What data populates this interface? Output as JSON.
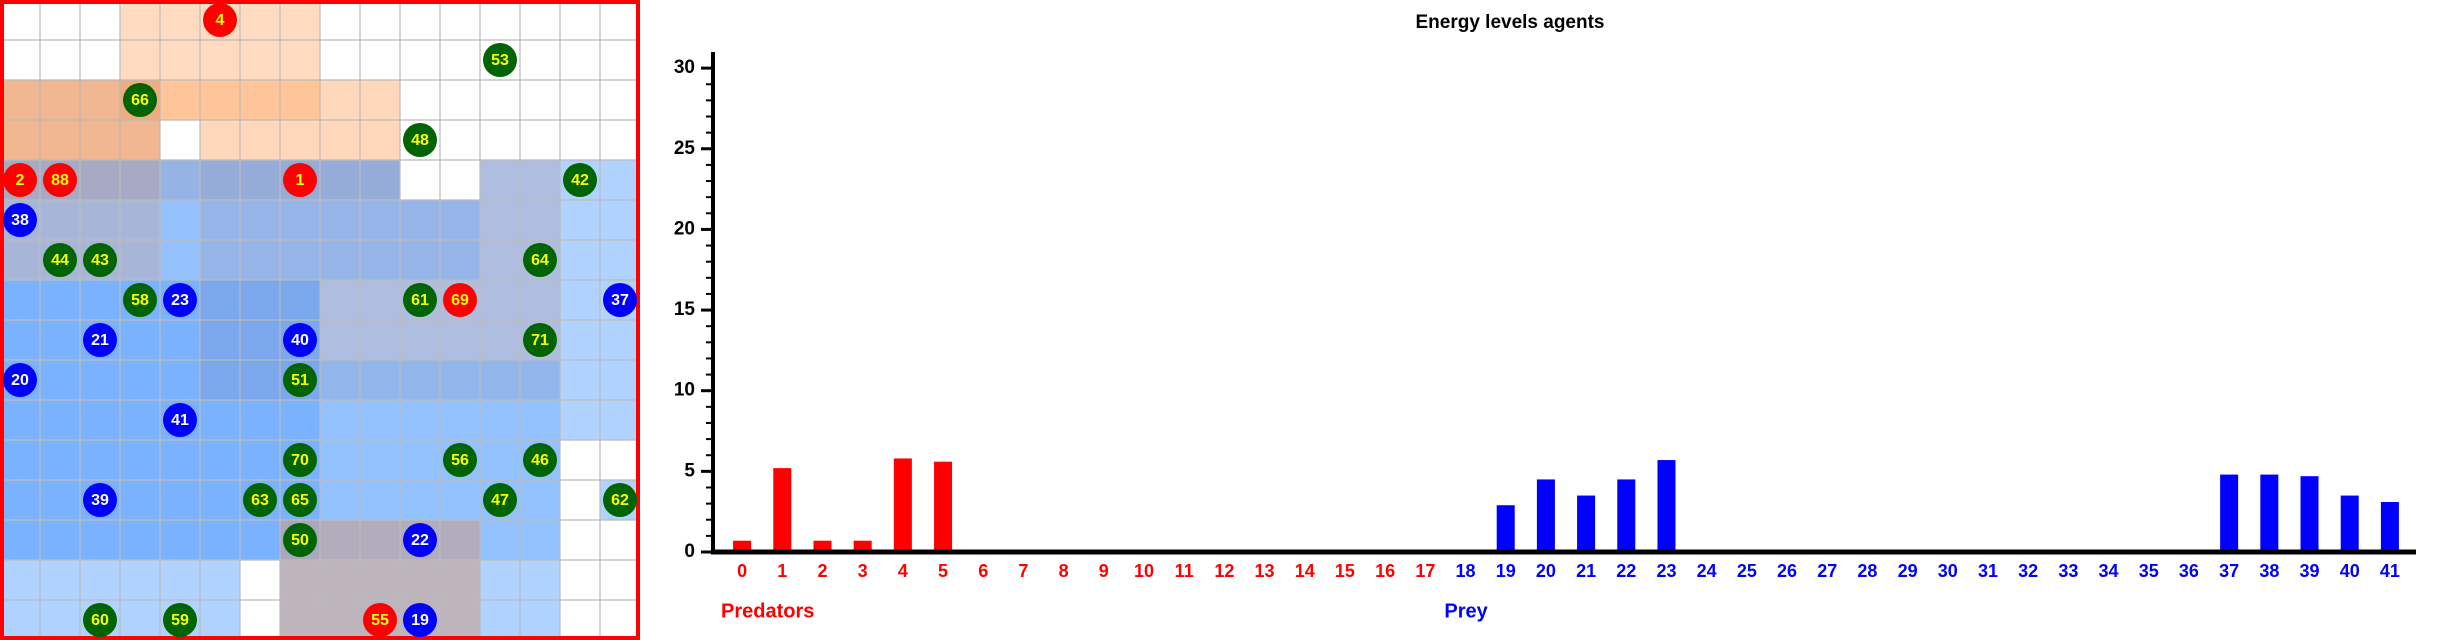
{
  "grid": {
    "cols": 16,
    "rows": 16,
    "border_color": "#ff0000",
    "grid_line_color": "#bbbbbb",
    "colors": {
      "predator": "#ff0000",
      "prey": "#0000ff",
      "plant": "#006400",
      "label_predator": "#ffff00",
      "label_prey": "#ffffff",
      "label_plant": "#ffff00"
    },
    "zones": [
      {
        "kind": "orange",
        "c0": 3,
        "r0": 0,
        "c1": 8,
        "r1": 3,
        "fill": "#ffbf8c",
        "opacity": 0.55
      },
      {
        "kind": "orange",
        "c0": 0,
        "r0": 2,
        "c1": 10,
        "r1": 5,
        "fill": "#ffa766",
        "opacity": 0.45
      },
      {
        "kind": "orange",
        "c0": 0,
        "r0": 2,
        "c1": 4,
        "r1": 7,
        "fill": "#e09060",
        "opacity": 0.45
      },
      {
        "kind": "orange",
        "c0": 5,
        "r0": 4,
        "c1": 14,
        "r1": 10,
        "fill": "#ffb07a",
        "opacity": 0.45
      },
      {
        "kind": "blue",
        "c0": 0,
        "r0": 4,
        "c1": 16,
        "r1": 16,
        "fill": "#4d9cff",
        "opacity": 0.45
      },
      {
        "kind": "blue",
        "c0": 0,
        "r0": 7,
        "c1": 8,
        "r1": 14,
        "fill": "#3b8cff",
        "opacity": 0.45
      },
      {
        "kind": "blue",
        "c0": 8,
        "r0": 9,
        "c1": 14,
        "r1": 14,
        "fill": "#66a8ff",
        "opacity": 0.4
      },
      {
        "kind": "blue",
        "c0": 4,
        "r0": 4,
        "c1": 12,
        "r1": 7,
        "fill": "#5aa0ff",
        "opacity": 0.3
      },
      {
        "kind": "mauve",
        "c0": 7,
        "r0": 13,
        "c1": 12,
        "r1": 16,
        "fill": "#c8a090",
        "opacity": 0.6
      }
    ],
    "white_cells": [
      [
        14,
        11
      ],
      [
        15,
        11
      ],
      [
        14,
        12
      ],
      [
        14,
        13
      ],
      [
        15,
        13
      ],
      [
        14,
        14
      ],
      [
        15,
        14
      ],
      [
        14,
        15
      ],
      [
        15,
        15
      ],
      [
        6,
        14
      ],
      [
        6,
        15
      ],
      [
        4,
        3
      ],
      [
        11,
        4
      ],
      [
        10,
        4
      ]
    ],
    "agents": [
      {
        "id": "4",
        "type": "predator",
        "col": 5,
        "row": 0
      },
      {
        "id": "53",
        "type": "plant",
        "col": 12,
        "row": 1
      },
      {
        "id": "66",
        "type": "plant",
        "col": 3,
        "row": 2
      },
      {
        "id": "48",
        "type": "plant",
        "col": 10,
        "row": 3
      },
      {
        "id": "2",
        "type": "predator",
        "col": 0,
        "row": 4
      },
      {
        "id": "88",
        "type": "predator",
        "col": 1,
        "row": 4
      },
      {
        "id": "1",
        "type": "predator",
        "col": 7,
        "row": 4
      },
      {
        "id": "42",
        "type": "plant",
        "col": 14,
        "row": 4
      },
      {
        "id": "38",
        "type": "prey",
        "col": 0,
        "row": 5
      },
      {
        "id": "44",
        "type": "plant",
        "col": 1,
        "row": 6
      },
      {
        "id": "43",
        "type": "plant",
        "col": 2,
        "row": 6
      },
      {
        "id": "64",
        "type": "plant",
        "col": 13,
        "row": 6
      },
      {
        "id": "58",
        "type": "plant",
        "col": 3,
        "row": 7
      },
      {
        "id": "23",
        "type": "prey",
        "col": 4,
        "row": 7
      },
      {
        "id": "61",
        "type": "plant",
        "col": 10,
        "row": 7
      },
      {
        "id": "69",
        "type": "predator",
        "col": 11,
        "row": 7
      },
      {
        "id": "37",
        "type": "prey",
        "col": 15,
        "row": 7
      },
      {
        "id": "21",
        "type": "prey",
        "col": 2,
        "row": 8
      },
      {
        "id": "40",
        "type": "prey",
        "col": 7,
        "row": 8
      },
      {
        "id": "71",
        "type": "plant",
        "col": 13,
        "row": 8
      },
      {
        "id": "20",
        "type": "prey",
        "col": 0,
        "row": 9
      },
      {
        "id": "51",
        "type": "plant",
        "col": 7,
        "row": 9
      },
      {
        "id": "41",
        "type": "prey",
        "col": 4,
        "row": 10
      },
      {
        "id": "70",
        "type": "plant",
        "col": 7,
        "row": 11
      },
      {
        "id": "56",
        "type": "plant",
        "col": 11,
        "row": 11
      },
      {
        "id": "46",
        "type": "plant",
        "col": 13,
        "row": 11
      },
      {
        "id": "39",
        "type": "prey",
        "col": 2,
        "row": 12
      },
      {
        "id": "63",
        "type": "plant",
        "col": 6,
        "row": 12
      },
      {
        "id": "65",
        "type": "plant",
        "col": 7,
        "row": 12
      },
      {
        "id": "47",
        "type": "plant",
        "col": 12,
        "row": 12
      },
      {
        "id": "62",
        "type": "plant",
        "col": 15,
        "row": 12
      },
      {
        "id": "50",
        "type": "plant",
        "col": 7,
        "row": 13
      },
      {
        "id": "22",
        "type": "prey",
        "col": 10,
        "row": 13
      },
      {
        "id": "60",
        "type": "plant",
        "col": 2,
        "row": 15
      },
      {
        "id": "59",
        "type": "plant",
        "col": 4,
        "row": 15
      },
      {
        "id": "55",
        "type": "predator",
        "col": 9,
        "row": 15
      },
      {
        "id": "19",
        "type": "prey",
        "col": 10,
        "row": 15
      }
    ]
  },
  "chart_data": {
    "type": "bar",
    "title": "Energy levels agents",
    "ylim": [
      0,
      31
    ],
    "y_major_ticks": [
      0,
      5,
      10,
      15,
      20,
      25,
      30
    ],
    "categories": [
      "0",
      "1",
      "2",
      "3",
      "4",
      "5",
      "6",
      "7",
      "8",
      "9",
      "10",
      "11",
      "12",
      "13",
      "14",
      "15",
      "16",
      "17",
      "18",
      "19",
      "20",
      "21",
      "22",
      "23",
      "24",
      "25",
      "26",
      "27",
      "28",
      "29",
      "30",
      "31",
      "32",
      "33",
      "34",
      "35",
      "36",
      "37",
      "38",
      "39",
      "40",
      "41"
    ],
    "category_groups": [
      {
        "name": "Predators",
        "from": 0,
        "to": 17,
        "color": "#ff0000"
      },
      {
        "name": "Prey",
        "from": 18,
        "to": 41,
        "color": "#0000ff"
      }
    ],
    "series": [
      {
        "name": "Predators",
        "color": "#ff0000",
        "values": [
          0.7,
          5.2,
          0.7,
          0.7,
          5.8,
          5.6,
          0,
          0,
          0,
          0,
          0,
          0,
          0,
          0,
          0,
          0,
          0,
          0,
          0,
          0,
          0,
          0,
          0,
          0,
          0,
          0,
          0,
          0,
          0,
          0,
          0,
          0,
          0,
          0,
          0,
          0,
          0,
          0,
          0,
          0,
          0,
          0
        ]
      },
      {
        "name": "Prey",
        "color": "#0000ff",
        "values": [
          0,
          0,
          0,
          0,
          0,
          0,
          0,
          0,
          0,
          0,
          0,
          0,
          0,
          0,
          0,
          0,
          0,
          0,
          0,
          2.9,
          4.5,
          3.5,
          4.5,
          5.7,
          0,
          0,
          0,
          0,
          0,
          0,
          0,
          0,
          0,
          0,
          0,
          0,
          0,
          4.8,
          4.8,
          4.7,
          3.5,
          3.1
        ]
      }
    ]
  }
}
